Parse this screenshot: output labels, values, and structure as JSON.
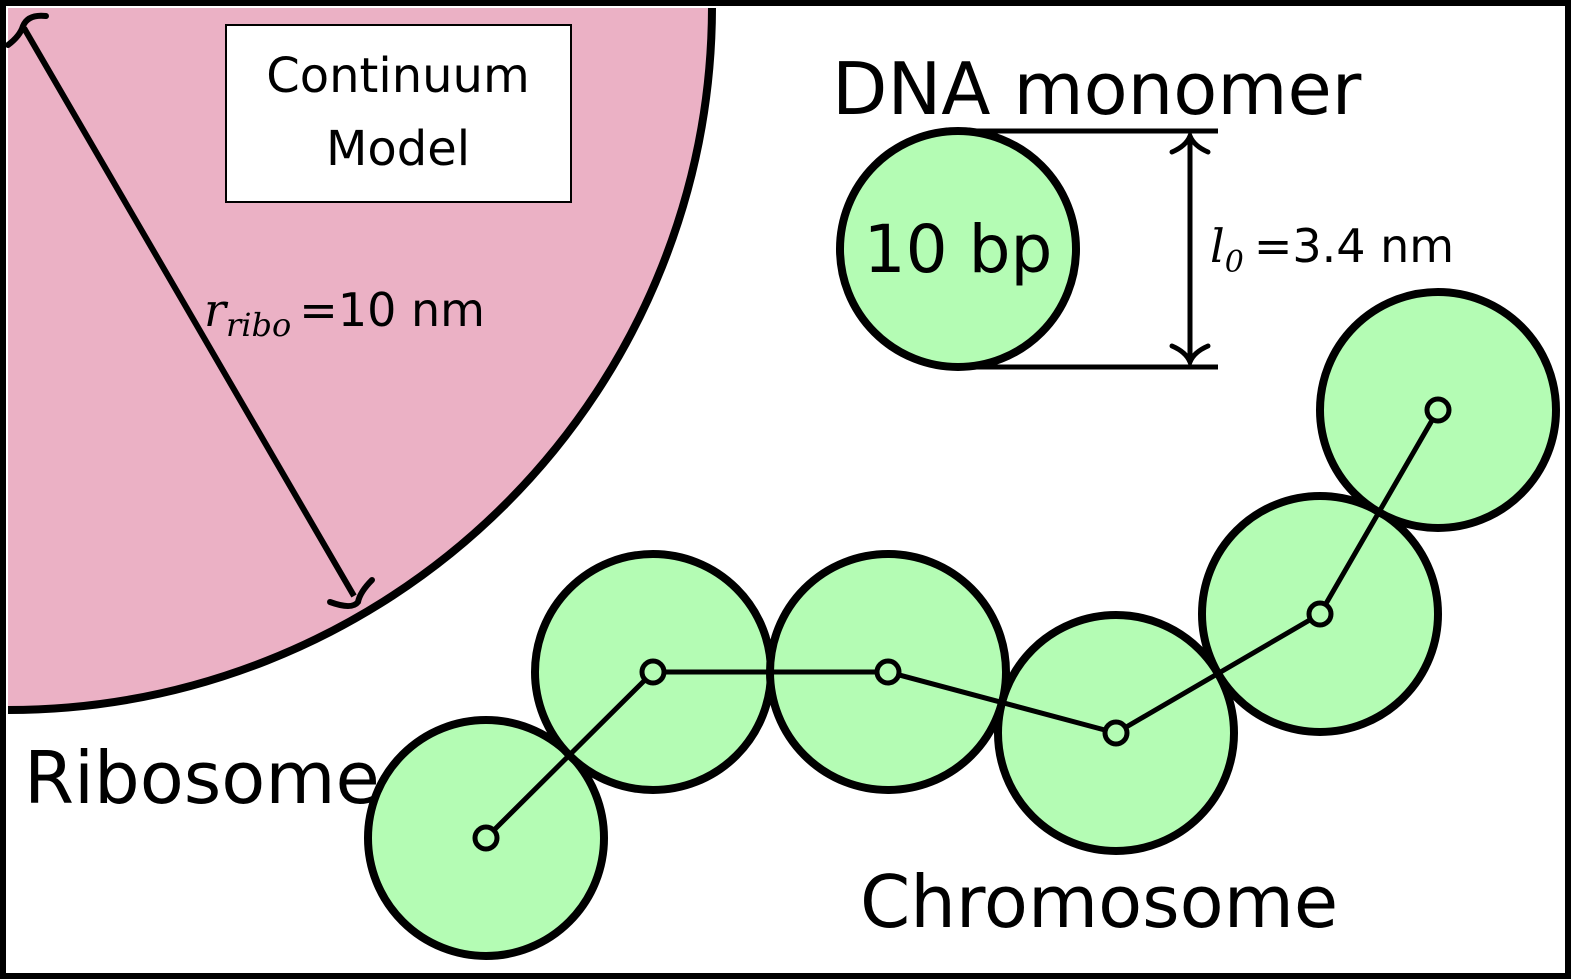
{
  "colors": {
    "ribosome_fill": "#ebb1c5",
    "monomer_fill": "#b4fcb4",
    "stroke": "#000000",
    "background": "#ffffff"
  },
  "ribosome": {
    "label": "Ribosome",
    "box_label_line1": "Continuum",
    "box_label_line2": "Model",
    "radius_symbol": "r",
    "radius_subscript": "ribo",
    "radius_value": "=10 nm"
  },
  "monomer": {
    "title": "DNA monomer",
    "content": "10 bp",
    "length_symbol": "l",
    "length_subscript": "0",
    "length_value": "=3.4 nm"
  },
  "chromosome": {
    "label": "Chromosome",
    "bead_count": 6
  }
}
